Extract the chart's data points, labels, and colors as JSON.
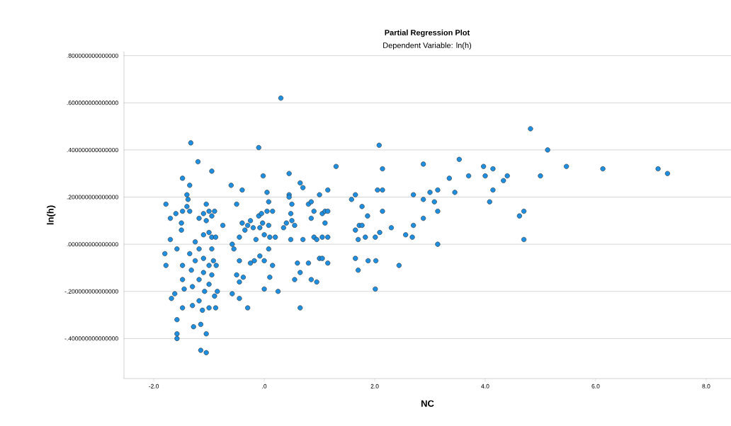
{
  "chart_data": {
    "type": "scatter",
    "title": "Partial Regression Plot",
    "subtitle": "Dependent Variable: ln(h)",
    "xlabel": "NC",
    "ylabel": "ln(h)",
    "xlim": [
      -2.54,
      8.45
    ],
    "ylim": [
      -0.57,
      0.817
    ],
    "xticks": [
      {
        "value": -2,
        "label": "-2.0"
      },
      {
        "value": 0,
        "label": ".0"
      },
      {
        "value": 2,
        "label": "2.0"
      },
      {
        "value": 4,
        "label": "4.0"
      },
      {
        "value": 6,
        "label": "6.0"
      },
      {
        "value": 8,
        "label": "8.0"
      }
    ],
    "yticks": [
      {
        "value": -0.4,
        "label": "-.400000000000000"
      },
      {
        "value": -0.2,
        "label": "-.200000000000000"
      },
      {
        "value": 0,
        "label": ".000000000000000"
      },
      {
        "value": 0.2,
        "label": ".200000000000000"
      },
      {
        "value": 0.4,
        "label": ".400000000000000"
      },
      {
        "value": 0.6,
        "label": ".600000000000000"
      },
      {
        "value": 0.8,
        "label": ".800000000000000"
      }
    ],
    "grid": "y",
    "marker": "circle",
    "x": [
      -1.8,
      -1.78,
      -1.78,
      -1.7,
      -1.7,
      -1.68,
      -1.62,
      -1.6,
      -1.58,
      -1.58,
      -1.58,
      -1.58,
      -1.5,
      -1.5,
      -1.48,
      -1.48,
      -1.48,
      -1.48,
      -1.48,
      -1.45,
      -1.4,
      -1.4,
      -1.38,
      -1.35,
      -1.33,
      -1.35,
      -1.35,
      -1.32,
      -1.3,
      -1.3,
      -1.28,
      -1.25,
      -1.25,
      -1.2,
      -1.18,
      -1.18,
      -1.18,
      -1.18,
      -1.15,
      -1.15,
      -1.12,
      -1.1,
      -1.1,
      -1.1,
      -1.1,
      -1.08,
      -1.05,
      -1.05,
      -1.05,
      -1.05,
      -1.0,
      -1.0,
      -1.0,
      -1.0,
      -1.0,
      -0.95,
      -0.95,
      -0.95,
      -0.95,
      -0.95,
      -0.92,
      -0.9,
      -0.9,
      -0.88,
      -0.88,
      -0.87,
      -0.85,
      -0.75,
      -0.6,
      -0.58,
      -0.58,
      -0.55,
      -0.5,
      -0.5,
      -0.45,
      -0.45,
      -0.45,
      -0.45,
      -0.4,
      -0.4,
      -0.38,
      -0.35,
      -0.3,
      -0.3,
      -0.25,
      -0.25,
      -0.2,
      -0.18,
      -0.15,
      -0.1,
      -0.1,
      -0.08,
      -0.08,
      -0.05,
      -0.03,
      -0.02,
      0.0,
      0.0,
      0.0,
      0.05,
      0.05,
      0.08,
      0.08,
      0.08,
      0.1,
      0.1,
      0.15,
      0.15,
      0.2,
      0.25,
      0.3,
      0.35,
      0.4,
      0.45,
      0.45,
      0.45,
      0.48,
      0.48,
      0.5,
      0.5,
      0.55,
      0.55,
      0.6,
      0.65,
      0.65,
      0.65,
      0.7,
      0.7,
      0.8,
      0.8,
      0.85,
      0.85,
      0.85,
      0.9,
      0.9,
      0.95,
      0.95,
      1.0,
      1.0,
      1.05,
      1.05,
      1.05,
      1.1,
      1.1,
      1.15,
      1.15,
      1.15,
      1.15,
      1.3,
      2.88,
      3.53,
      3.97,
      4.14,
      4.0,
      3.7,
      3.35,
      4.4,
      4.33,
      4.14,
      3.14,
      3.0,
      3.45,
      2.7,
      2.88,
      3.08,
      4.08,
      3.14,
      4.7,
      4.62,
      2.88,
      2.7,
      2.3,
      2.56,
      2.68,
      3.14,
      4.7,
      2.44,
      4.82,
      5.13,
      5.0,
      5.47,
      6.13,
      7.13,
      7.3,
      2.08,
      2.14,
      1.65,
      1.58,
      2.05,
      2.14,
      1.77,
      1.87,
      2.14,
      1.65,
      1.72,
      1.77,
      1.7,
      1.83,
      2.01,
      2.09,
      1.65,
      1.7,
      1.88,
      2.02,
      2.01
    ],
    "series": [
      {
        "color": "#1e8fe0",
        "values": [
          -0.04,
          -0.09,
          0.17,
          0.11,
          0.02,
          -0.23,
          -0.21,
          0.13,
          -0.02,
          -0.32,
          -0.38,
          -0.4,
          0.06,
          0.09,
          0.14,
          0.28,
          -0.09,
          -0.15,
          -0.27,
          -0.19,
          0.16,
          0.21,
          0.19,
          0.25,
          0.43,
          0.14,
          -0.04,
          -0.11,
          -0.18,
          -0.26,
          -0.35,
          0.01,
          -0.07,
          0.35,
          0.11,
          -0.02,
          -0.15,
          -0.24,
          -0.45,
          -0.34,
          -0.28,
          0.13,
          0.04,
          -0.06,
          -0.12,
          -0.2,
          0.17,
          0.1,
          -0.38,
          -0.46,
          0.14,
          0.05,
          -0.09,
          -0.17,
          -0.27,
          0.31,
          0.12,
          0.03,
          -0.02,
          -0.13,
          -0.07,
          -0.22,
          0.14,
          0.03,
          -0.27,
          -0.09,
          -0.2,
          0.08,
          0.25,
          -0.21,
          0.0,
          -0.02,
          0.17,
          -0.13,
          0.03,
          -0.07,
          -0.16,
          -0.23,
          0.23,
          0.09,
          -0.14,
          0.06,
          0.08,
          -0.27,
          0.1,
          -0.08,
          0.07,
          -0.07,
          0.02,
          0.41,
          0.12,
          0.07,
          -0.05,
          0.13,
          0.09,
          0.29,
          -0.07,
          -0.19,
          0.04,
          0.22,
          0.14,
          0.18,
          0.08,
          -0.02,
          -0.14,
          0.03,
          0.14,
          -0.09,
          0.03,
          -0.2,
          0.62,
          0.07,
          0.09,
          0.3,
          0.21,
          0.2,
          0.13,
          0.02,
          0.17,
          0.1,
          0.08,
          -0.15,
          -0.08,
          0.26,
          -0.12,
          -0.27,
          0.24,
          0.02,
          0.17,
          -0.08,
          0.18,
          0.11,
          -0.15,
          0.14,
          0.03,
          -0.16,
          0.02,
          0.21,
          -0.06,
          0.13,
          0.03,
          -0.06,
          0.14,
          0.09,
          0.23,
          0.14,
          0.03,
          -0.08,
          0.33,
          0.34,
          0.36,
          0.33,
          0.32,
          0.29,
          0.29,
          0.28,
          0.29,
          0.27,
          0.23,
          0.23,
          0.22,
          0.22,
          0.21,
          0.19,
          0.18,
          0.18,
          0.14,
          0.14,
          0.12,
          0.11,
          0.08,
          0.07,
          0.04,
          0.03,
          0.0,
          0.02,
          -0.09,
          0.49,
          0.4,
          0.29,
          0.33,
          0.32,
          0.32,
          0.3,
          0.42,
          0.32,
          0.21,
          0.19,
          0.23,
          0.23,
          0.16,
          0.12,
          0.14,
          0.06,
          0.08,
          0.08,
          0.02,
          0.03,
          0.03,
          0.05,
          -0.06,
          -0.11,
          -0.07,
          -0.07,
          -0.19
        ]
      }
    ]
  }
}
